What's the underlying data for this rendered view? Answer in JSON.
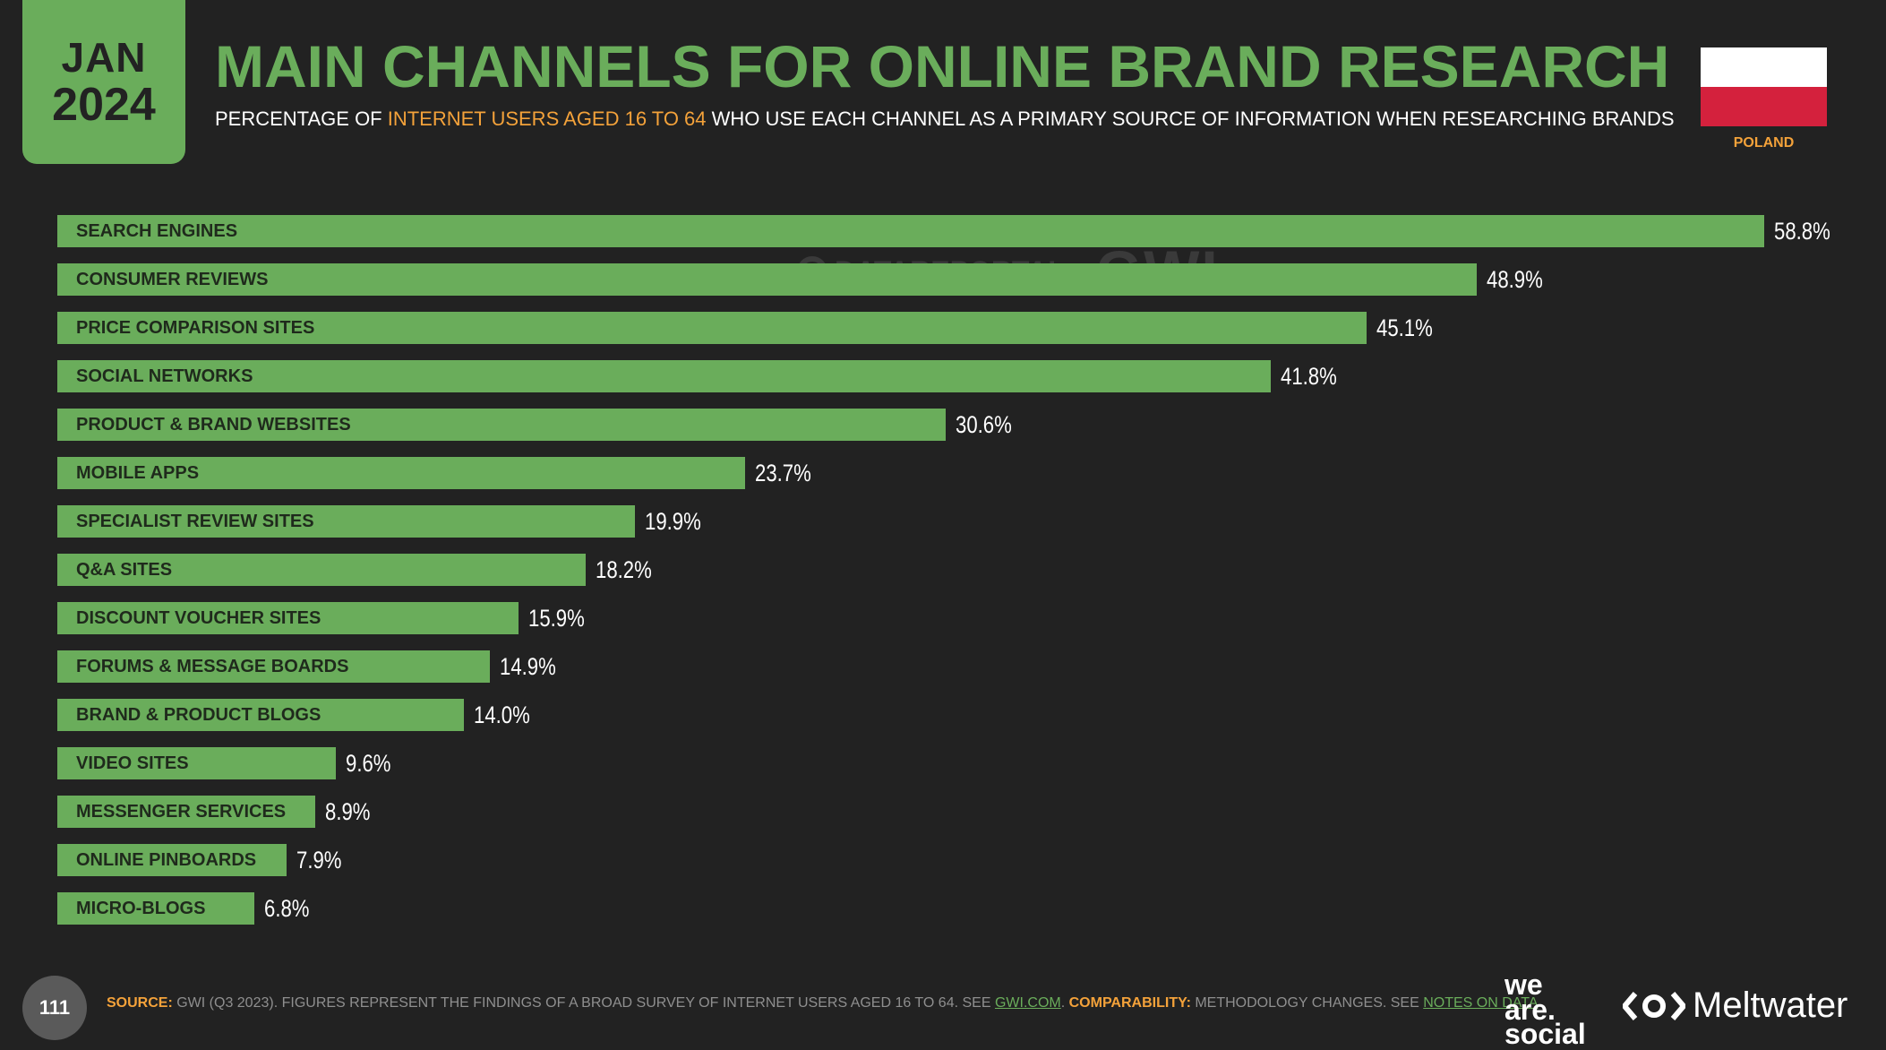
{
  "header": {
    "month": "JAN",
    "year": "2024",
    "title": "MAIN CHANNELS FOR ONLINE BRAND RESEARCH",
    "subtitle_pre": "PERCENTAGE OF ",
    "subtitle_highlight": "INTERNET USERS AGED 16 TO 64",
    "subtitle_post": " WHO USE EACH CHANNEL AS A PRIMARY SOURCE OF INFORMATION WHEN RESEARCHING BRANDS",
    "country": "POLAND",
    "flag_colors": [
      "#ffffff",
      "#d4213d"
    ]
  },
  "watermark": {
    "datareportal": "DATAREPORTAL",
    "gwi": "GWI."
  },
  "colors": {
    "accent": "#6aad5b",
    "highlight": "#f4a23a",
    "background": "#222222"
  },
  "chart_data": {
    "type": "bar",
    "orientation": "horizontal",
    "categories": [
      "SEARCH ENGINES",
      "CONSUMER REVIEWS",
      "PRICE COMPARISON SITES",
      "SOCIAL NETWORKS",
      "PRODUCT & BRAND WEBSITES",
      "MOBILE APPS",
      "SPECIALIST REVIEW SITES",
      "Q&A SITES",
      "DISCOUNT VOUCHER SITES",
      "FORUMS & MESSAGE BOARDS",
      "BRAND & PRODUCT BLOGS",
      "VIDEO SITES",
      "MESSENGER SERVICES",
      "ONLINE PINBOARDS",
      "MICRO-BLOGS"
    ],
    "values": [
      58.8,
      48.9,
      45.1,
      41.8,
      30.6,
      23.7,
      19.9,
      18.2,
      15.9,
      14.9,
      14.0,
      9.6,
      8.9,
      7.9,
      6.8
    ],
    "labels": [
      "58.8%",
      "48.9%",
      "45.1%",
      "41.8%",
      "30.6%",
      "23.7%",
      "19.9%",
      "18.2%",
      "15.9%",
      "14.9%",
      "14.0%",
      "9.6%",
      "8.9%",
      "7.9%",
      "6.8%"
    ],
    "unit": "%",
    "xlim": [
      0,
      58.8
    ],
    "grid": false,
    "legend": "none"
  },
  "footer": {
    "page_number": "111",
    "source_label": "SOURCE:",
    "source_text": " GWI (Q3 2023). FIGURES REPRESENT THE FINDINGS OF A BROAD SURVEY OF INTERNET USERS AGED 16 TO 64. SEE ",
    "source_link": "GWI.COM",
    "comparability_label": " COMPARABILITY:",
    "comparability_text": " METHODOLOGY CHANGES. SEE ",
    "notes_link": "NOTES ON DATA",
    "end": "."
  },
  "logos": {
    "was_line1": "we",
    "was_line2": "are.",
    "was_line3": "social",
    "meltwater_icon": "meltwater-icon",
    "meltwater": "Meltwater"
  }
}
